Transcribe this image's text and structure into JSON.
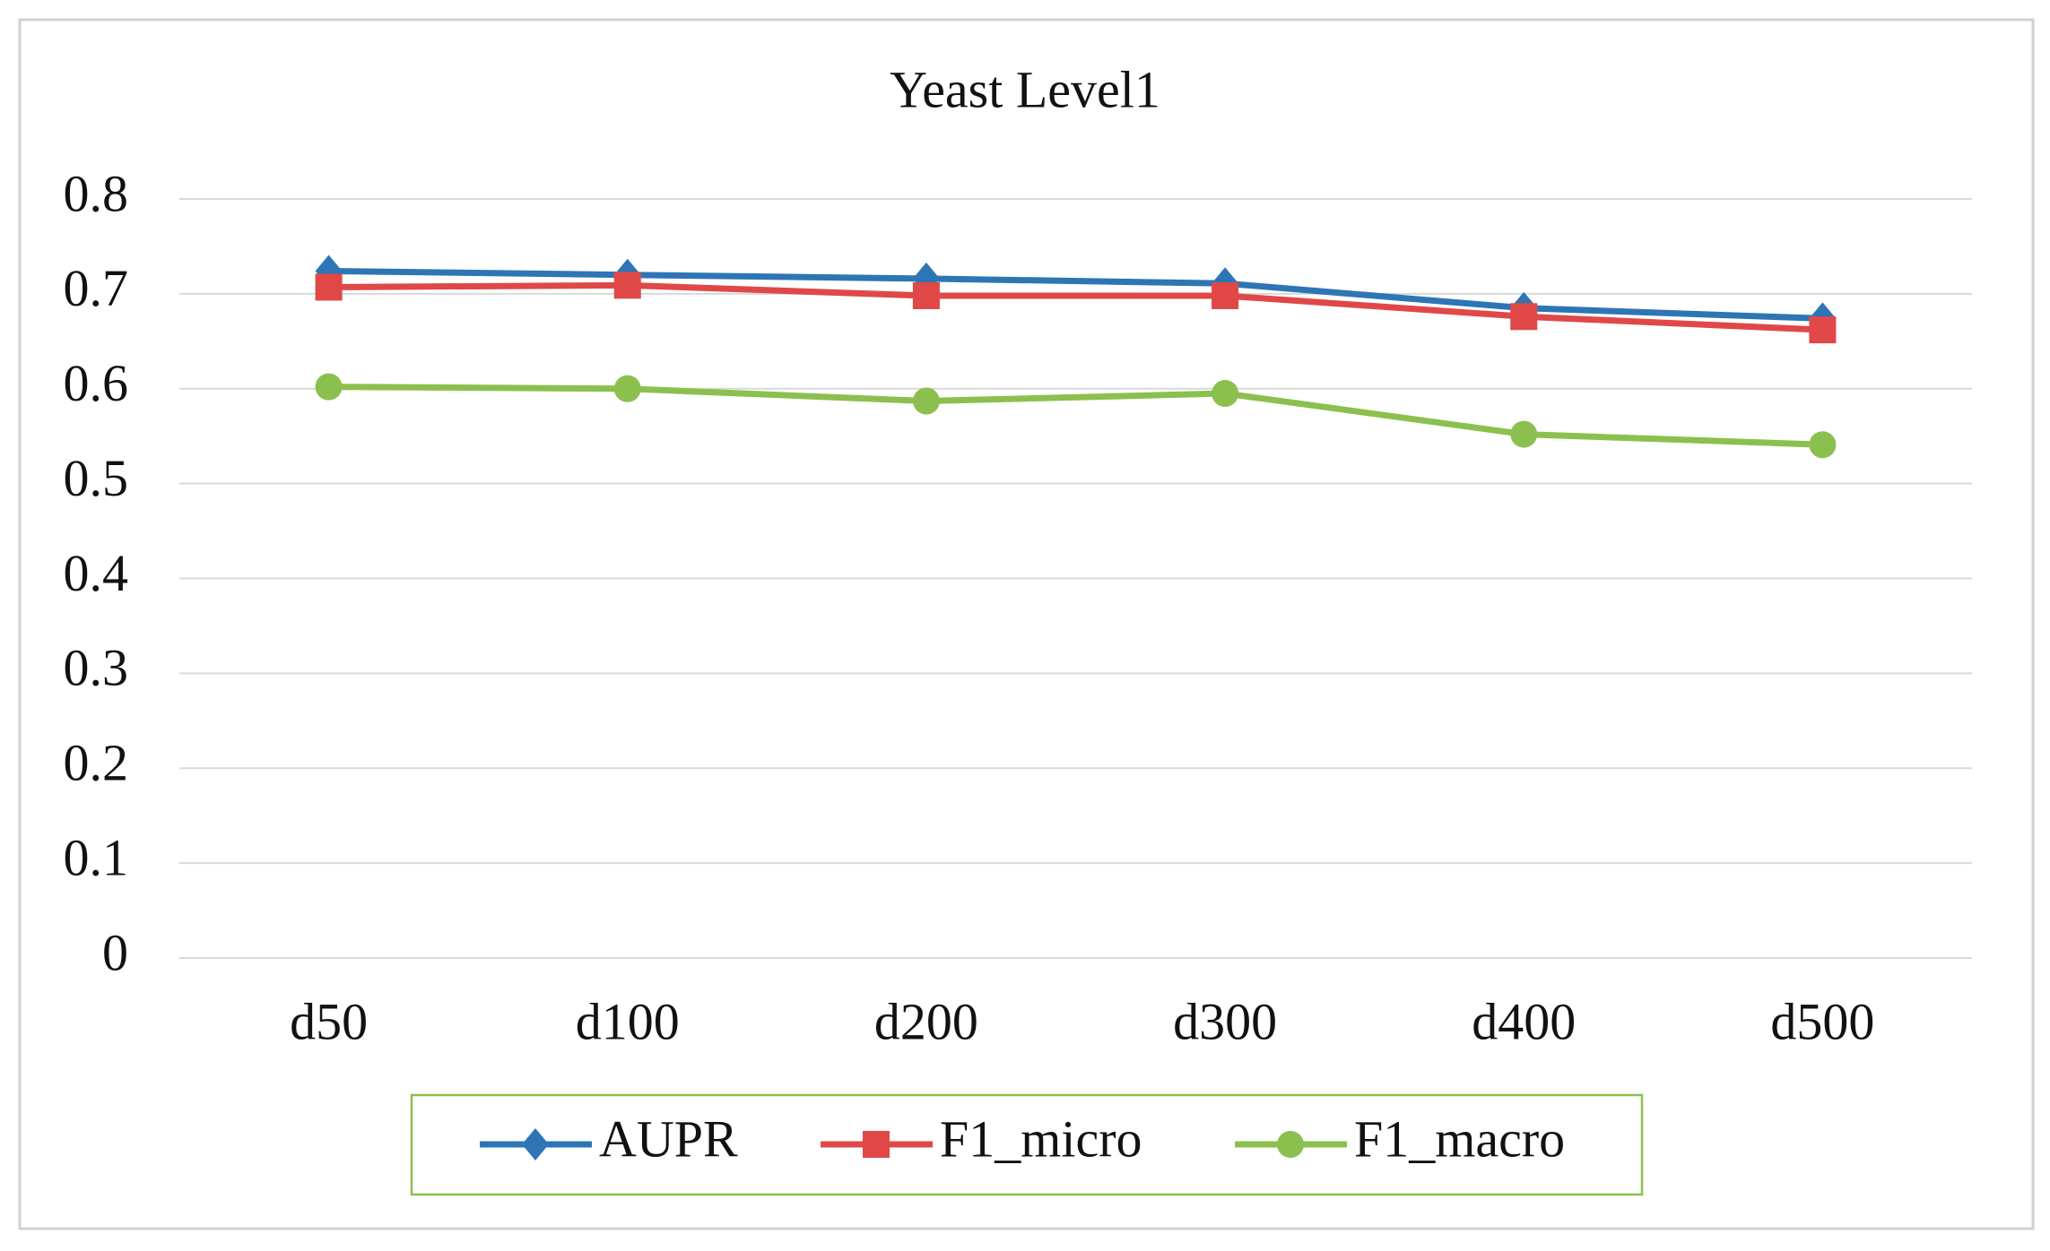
{
  "chart_data": {
    "type": "line",
    "title": "Yeast  Level1",
    "categories": [
      "d50",
      "d100",
      "d200",
      "d300",
      "d400",
      "d500"
    ],
    "series": [
      {
        "name": "AUPR",
        "color": "#2e75b6",
        "marker": "diamond",
        "values": [
          0.724,
          0.72,
          0.716,
          0.711,
          0.685,
          0.674
        ]
      },
      {
        "name": "F1_micro",
        "color": "#e04848",
        "marker": "square",
        "values": [
          0.707,
          0.709,
          0.698,
          0.698,
          0.676,
          0.662
        ]
      },
      {
        "name": "F1_macro",
        "color": "#8cc04e",
        "marker": "circle",
        "values": [
          0.602,
          0.6,
          0.587,
          0.595,
          0.552,
          0.541
        ]
      }
    ],
    "ylim": [
      0,
      0.8
    ],
    "yticks": [
      0,
      0.1,
      0.2,
      0.3,
      0.4,
      0.5,
      0.6,
      0.7,
      0.8
    ],
    "grid": true,
    "legend": "bottom"
  }
}
